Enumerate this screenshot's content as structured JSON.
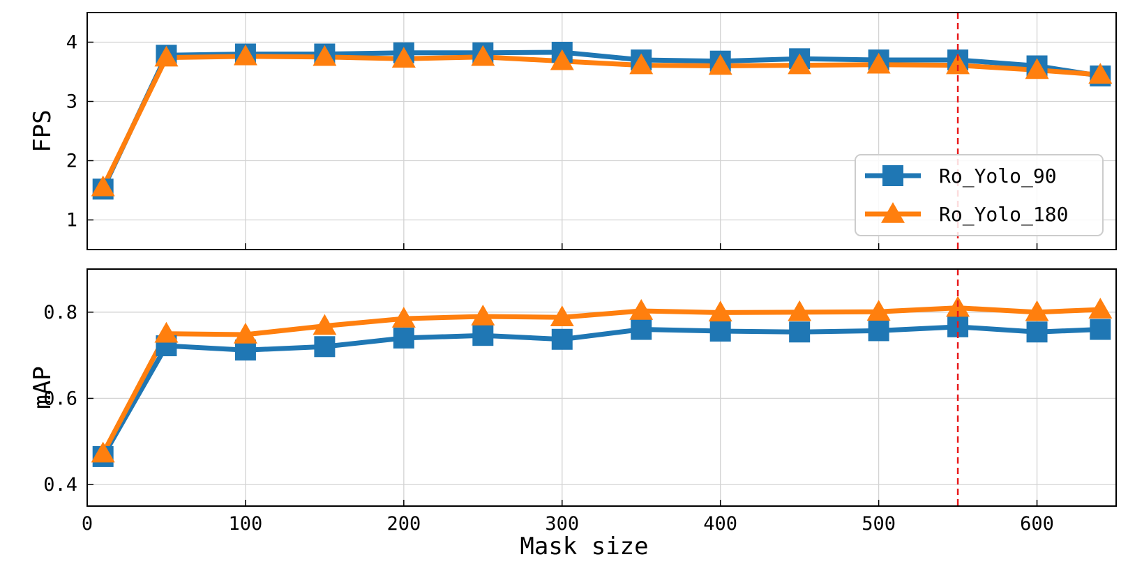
{
  "chart_data": [
    {
      "type": "line",
      "ylabel": "FPS",
      "xlabel": "",
      "xlim": [
        0,
        650
      ],
      "ylim": [
        0.5,
        4.5
      ],
      "yticks": [
        1,
        2,
        3,
        4
      ],
      "yticklabels": [
        "1",
        "2",
        "3",
        "4"
      ],
      "xticks": [
        0,
        100,
        200,
        300,
        400,
        500,
        600
      ],
      "xticklabels": [],
      "grid": true,
      "legend_position": "lower-right",
      "reference_line_x": 550,
      "reference_line_color": "#e8191b",
      "x": [
        10,
        50,
        100,
        150,
        200,
        250,
        300,
        350,
        400,
        450,
        500,
        550,
        600,
        640
      ],
      "series": [
        {
          "name": "Ro_Yolo_90",
          "color": "#1f77b4",
          "marker": "square",
          "values": [
            1.52,
            3.78,
            3.8,
            3.8,
            3.82,
            3.82,
            3.83,
            3.7,
            3.68,
            3.72,
            3.7,
            3.7,
            3.6,
            3.43
          ]
        },
        {
          "name": "Ro_Yolo_180",
          "color": "#ff7f0e",
          "marker": "triangle",
          "values": [
            1.55,
            3.74,
            3.76,
            3.75,
            3.72,
            3.75,
            3.68,
            3.61,
            3.6,
            3.61,
            3.62,
            3.61,
            3.53,
            3.45
          ]
        }
      ]
    },
    {
      "type": "line",
      "ylabel": "mAP",
      "xlabel": "Mask size",
      "xlim": [
        0,
        650
      ],
      "ylim": [
        0.35,
        0.9
      ],
      "yticks": [
        0.4,
        0.6,
        0.8
      ],
      "yticklabels": [
        "0.4",
        "0.6",
        "0.8"
      ],
      "xticks": [
        0,
        100,
        200,
        300,
        400,
        500,
        600
      ],
      "xticklabels": [
        "0",
        "100",
        "200",
        "300",
        "400",
        "500",
        "600"
      ],
      "grid": true,
      "reference_line_x": 550,
      "reference_line_color": "#e8191b",
      "x": [
        10,
        50,
        100,
        150,
        200,
        250,
        300,
        350,
        400,
        450,
        500,
        550,
        600,
        640
      ],
      "series": [
        {
          "name": "Ro_Yolo_90",
          "color": "#1f77b4",
          "marker": "square",
          "values": [
            0.465,
            0.722,
            0.712,
            0.72,
            0.74,
            0.746,
            0.737,
            0.76,
            0.756,
            0.754,
            0.757,
            0.766,
            0.754,
            0.76
          ]
        },
        {
          "name": "Ro_Yolo_180",
          "color": "#ff7f0e",
          "marker": "triangle",
          "values": [
            0.472,
            0.75,
            0.748,
            0.768,
            0.785,
            0.79,
            0.788,
            0.803,
            0.799,
            0.8,
            0.801,
            0.81,
            0.8,
            0.806
          ]
        }
      ]
    }
  ]
}
